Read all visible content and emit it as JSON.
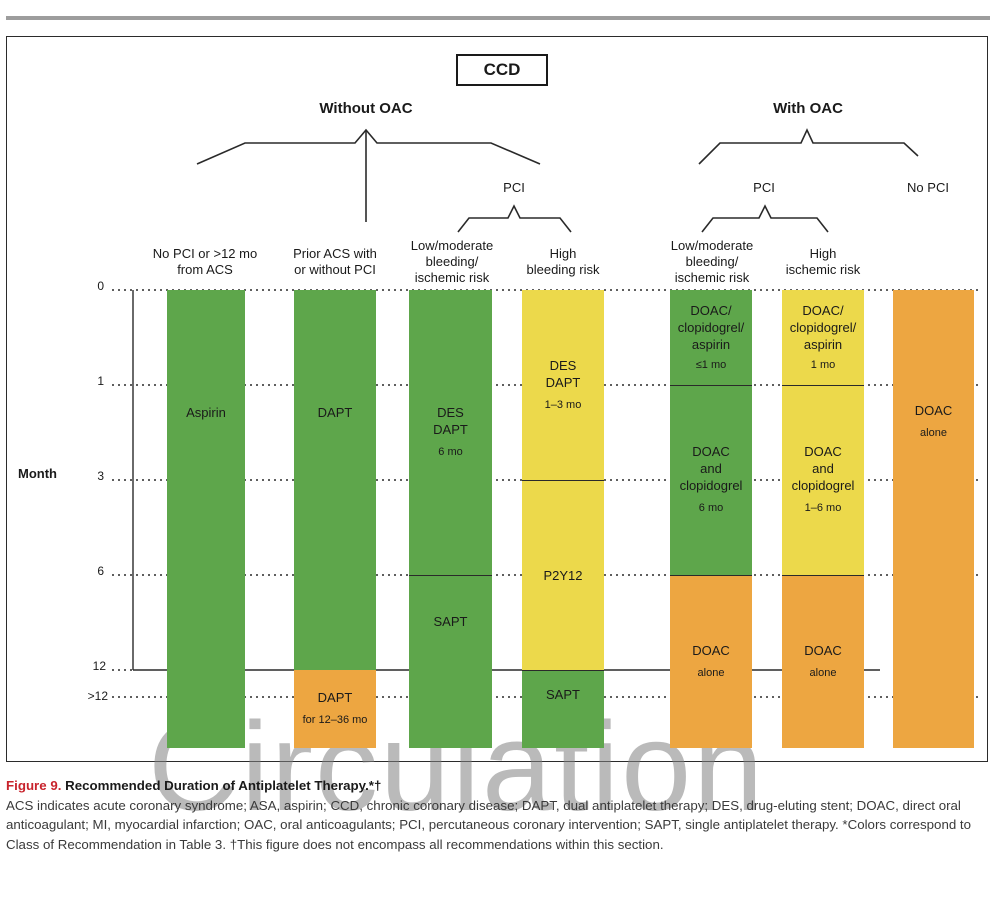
{
  "title_box": "CCD",
  "groups": {
    "without_oac": "Without OAC",
    "with_oac": "With OAC",
    "pci_left": "PCI",
    "pci_right": "PCI",
    "no_pci": "No PCI"
  },
  "column_headers": {
    "col1": [
      "No PCI or >12 mo",
      "from ACS"
    ],
    "col2": [
      "Prior ACS with",
      "or without PCI"
    ],
    "col3": [
      "Low/moderate",
      "bleeding/",
      "ischemic risk"
    ],
    "col4": [
      "High",
      "bleeding risk"
    ],
    "col5": [
      "Low/moderate",
      "bleeding/",
      "ischemic risk"
    ],
    "col6": [
      "High",
      "ischemic risk"
    ]
  },
  "axis": {
    "label": "Month",
    "ticks": [
      "0",
      "1",
      "3",
      "6",
      "12",
      ">12"
    ]
  },
  "bars": {
    "col1": {
      "main": "Aspirin"
    },
    "col2": {
      "main": "DAPT",
      "ext_main": "DAPT",
      "ext_sub": "for 12–36 mo"
    },
    "col3": {
      "main": [
        "DES",
        "DAPT"
      ],
      "main_sub": "6 mo",
      "lower": "SAPT"
    },
    "col4": {
      "top": [
        "DES",
        "DAPT"
      ],
      "top_sub": "1–3 mo",
      "mid": "P2Y12",
      "lower": "SAPT"
    },
    "col5": {
      "top": [
        "DOAC/",
        "clopidogrel/",
        "aspirin"
      ],
      "top_sub": "≤1 mo",
      "mid": [
        "DOAC",
        "and",
        "clopidogrel"
      ],
      "mid_sub": "6 mo",
      "lower": [
        "DOAC",
        "alone"
      ]
    },
    "col6": {
      "top": [
        "DOAC/",
        "clopidogrel/",
        "aspirin"
      ],
      "top_sub": "1 mo",
      "mid": [
        "DOAC",
        "and",
        "clopidogrel"
      ],
      "mid_sub": "1–6 mo",
      "lower": [
        "DOAC",
        "alone"
      ]
    },
    "col7": {
      "main": "DOAC",
      "main_sub": "alone"
    }
  },
  "colors": {
    "green": "#5ea64b",
    "yellow": "#ecd94b",
    "orange": "#eda641"
  },
  "watermark": "Circulation",
  "caption": {
    "figure_number": "Figure 9.",
    "figure_title": "Recommended Duration of Antiplatelet Therapy.*†",
    "text": "ACS indicates acute coronary syndrome; ASA, aspirin; CCD, chronic coronary disease; DAPT, dual antiplatelet therapy; DES, drug-eluting stent; DOAC, direct oral anticoagulant; MI, myocardial infarction; OAC, oral anticoagulants; PCI, percutaneous coronary intervention; SAPT, single antiplatelet therapy. *Colors correspond to Class of Recommendation in Table 3. †This figure does not encompass all recommendations within this section."
  }
}
